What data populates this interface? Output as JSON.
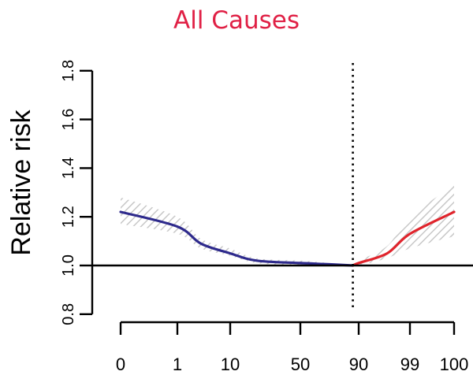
{
  "chart_data": {
    "type": "line",
    "title": "All  Causes",
    "ylabel": "Relative risk",
    "xlabel": "",
    "x_ticks": [
      "0",
      "1",
      "10",
      "50",
      "90",
      "99",
      "100"
    ],
    "y_ticks": [
      "0.8",
      "1.0",
      "1.2",
      "1.4",
      "1.6",
      "1.8"
    ],
    "ylim": [
      0.75,
      1.82
    ],
    "reference_line_y": 1.0,
    "threshold_x": 86,
    "grid": false,
    "colors": {
      "title": "#e02045",
      "below_threshold": "#2e2a8c",
      "above_threshold": "#e0242c",
      "confidence_band": "#c8c8c8",
      "axis": "#000000"
    },
    "series": [
      {
        "segment": "below_threshold",
        "color": "#2e2a8c",
        "x": [
          0,
          1,
          5,
          10,
          25,
          50,
          70,
          86
        ],
        "y": [
          1.22,
          1.16,
          1.09,
          1.05,
          1.02,
          1.01,
          1.005,
          1.0
        ],
        "lower": [
          1.17,
          1.13,
          1.07,
          1.04,
          1.01,
          1.0,
          0.997,
          1.0
        ],
        "upper": [
          1.28,
          1.2,
          1.11,
          1.07,
          1.03,
          1.02,
          1.01,
          1.0
        ]
      },
      {
        "segment": "above_threshold",
        "color": "#e0242c",
        "x": [
          86,
          90,
          95,
          99,
          100
        ],
        "y": [
          1.0,
          1.01,
          1.05,
          1.13,
          1.22
        ],
        "lower": [
          1.0,
          1.0,
          1.03,
          1.07,
          1.12
        ],
        "upper": [
          1.0,
          1.02,
          1.08,
          1.2,
          1.33
        ]
      }
    ]
  }
}
